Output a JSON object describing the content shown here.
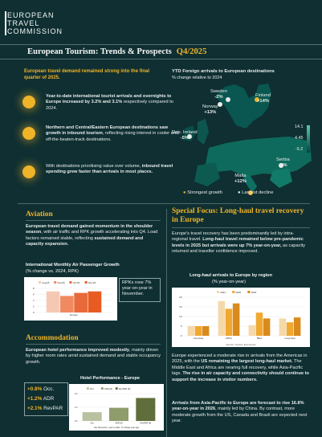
{
  "logo": {
    "line1": "EUROPEAN",
    "line2": "TRAVEL",
    "line3": "COMMISSION"
  },
  "title": {
    "main": "European Tourism: Trends & Prospects",
    "quarter": "Q4/2025"
  },
  "lead": "European travel demand remained strong into the final quarter of 2025.",
  "bullets": [
    {
      "pre": "Year-to-date international tourist arrivals and overnights to Europe increased by 3.2% and 3.1%",
      "post": " respectively compared to 2024."
    },
    {
      "pre": "Northern and Central/Eastern European destinations saw growth in inbound tourism",
      "post": ", reflecting rising interest in cooler and off-the-beaten-track destinations."
    },
    {
      "pre": "With destinations prioritising value over volume, ",
      "mid": "inbound travel spending grew faster than arrivals in most places.",
      "post": ""
    }
  ],
  "map": {
    "title": "YTD Foreign arrivals to European destinations",
    "subtitle": "% change relative to 2024",
    "markers": [
      {
        "name": "Sweden",
        "value": "-2%"
      },
      {
        "name": "Finland",
        "value": "+14%"
      },
      {
        "name": "Norway",
        "value": "+13%"
      },
      {
        "name": "Rep. Ireland",
        "value": "-5%"
      },
      {
        "name": "Serbia",
        "value": "-2%"
      },
      {
        "name": "Malta",
        "value": "+12%"
      }
    ],
    "scale": [
      "14.1",
      "4.45",
      "-5.2"
    ],
    "legend_growth": "Strongest growth",
    "legend_decline": "Largest decline"
  },
  "aviation": {
    "heading": "Aviation",
    "text_a": "European travel demand gained momentum in the ",
    "text_b": "shoulder season",
    "text_c": ", with air traffic and RPK growth accelerating into Q4. Load factors remained stable, reflecting ",
    "text_d": "sustained demand and capacity expansion.",
    "chart_title": "International Monthly Air Passenger Growth",
    "chart_sub": "(% change vs. 2024, RPK)",
    "callout": "RPKs rose 7% year-on-year in November."
  },
  "accommodation": {
    "heading": "Accommodation",
    "text_a": "European hotel performance improved modestly",
    "text_b": ", mainly driven by higher room rates amid sustained demand and stable occupancy growth.",
    "kpis": [
      {
        "value": "+0.8%",
        "label": "Occ."
      },
      {
        "value": "+1.2%",
        "label": "ADR"
      },
      {
        "value": "+2.1%",
        "label": "RevPAR"
      }
    ],
    "chart_title": "Hotel Performance - Europe",
    "chart_sub": "Jan-November; year-to-date, % change year-ago"
  },
  "special": {
    "heading": "Special Focus: Long-haul travel recovery in Europe",
    "p1_a": "Europe's travel recovery has been predominantly led by intra-regional travel. ",
    "p1_b": "Long-haul travel remained below pre-pandemic levels in 2025 but arrivals were up 7% year-on-year,",
    "p1_c": " as capacity returned and traveller confidence improved.",
    "chart_title": "Long-haul arrivals to Europe by region",
    "chart_sub": "(% year-on-year)",
    "chart_source": "Source: Tourism Economics",
    "p2_a": "Europe experienced a moderate rise in arrivals from the Americas in 2025, with the ",
    "p2_b": "US remaining the largest long-haul market.",
    "p2_c": " The Middle East and Africa are nearing full recovery, while Asia-Pacific lags. ",
    "p2_d": "The rise in air capacity and connectivity should continue to support the increase in visitor numbers.",
    "p3_a": "Arrivals from Asia-Pacific to Europe are forecast to rise 16.8% year-on-year in 2026",
    "p3_b": ", mainly led by China. By contrast, more moderate growth from the US, Canada and Brazil are expected next year."
  },
  "chart_data": [
    {
      "type": "bar",
      "title": "International Monthly Air Passenger Growth",
      "categories": [
        "Europe"
      ],
      "series": [
        {
          "name": "Aug'25",
          "values": [
            7.0
          ]
        },
        {
          "name": "Sep'25",
          "values": [
            5.5
          ]
        },
        {
          "name": "Oct'25",
          "values": [
            6.5
          ]
        },
        {
          "name": "Nov'25",
          "values": [
            7.0
          ]
        }
      ],
      "ylim": [
        0,
        8
      ],
      "yticks": [
        "8",
        "6",
        "4",
        "2",
        "0"
      ],
      "colors": [
        "#f5c8b4",
        "#f08a60",
        "#e86a3a",
        "#e85c22"
      ]
    },
    {
      "type": "bar",
      "title": "Hotel Performance - Europe",
      "categories": [
        "Occ",
        "ADR (€)",
        "RevPAR (€)"
      ],
      "values": [
        0.8,
        1.2,
        2.1
      ],
      "ylim": [
        0,
        2.5
      ],
      "yticks": [
        "2.0",
        "1.0",
        "0.0"
      ],
      "colors": [
        "#b8c2a0",
        "#8f9c6c",
        "#5f6e3a"
      ]
    },
    {
      "type": "bar",
      "title": "Long-haul arrivals to Europe by region",
      "categories": [
        "Americas",
        "APAC",
        "MEA",
        "Long-haul"
      ],
      "series": [
        {
          "name": "2024",
          "values": [
            5.0,
            18.0,
            5.5,
            9.0
          ]
        },
        {
          "name": "2025",
          "values": [
            5.0,
            14.0,
            12.0,
            7.0
          ]
        },
        {
          "name": "2026",
          "values": [
            5.0,
            16.8,
            9.0,
            9.5
          ]
        }
      ],
      "ylim": [
        0,
        20
      ],
      "yticks": [
        "20",
        "15",
        "10",
        "5",
        "0"
      ],
      "colors": [
        "#f5d9a8",
        "#f0a830",
        "#d98a1c"
      ]
    }
  ]
}
